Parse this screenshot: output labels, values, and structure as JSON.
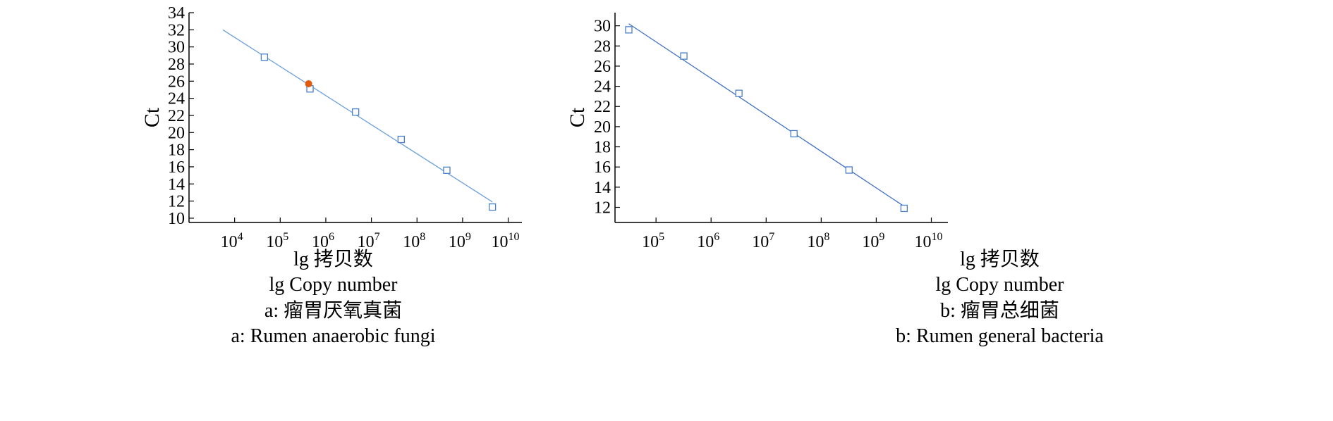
{
  "figure": {
    "panels": [
      {
        "xlabel_cn": "lg 拷贝数",
        "xlabel_en": "lg Copy number",
        "caption_cn": "a: 瘤胃厌氧真菌",
        "caption_en": "a: Rumen anaerobic fungi"
      },
      {
        "xlabel_cn": "lg 拷贝数",
        "xlabel_en": "lg Copy number",
        "caption_cn": "b: 瘤胃总细菌",
        "caption_en": "b: Rumen general bacteria"
      }
    ]
  },
  "chart_data": [
    {
      "type": "scatter",
      "title": "",
      "xlabel": "lg Copy number",
      "ylabel": "Ct",
      "x_scale": "log",
      "xlim": [
        1000,
        20000000000
      ],
      "ylim": [
        9.5,
        34
      ],
      "x_ticks": [
        4,
        5,
        6,
        7,
        8,
        9,
        10
      ],
      "y_ticks": [
        10,
        12,
        14,
        16,
        18,
        20,
        22,
        24,
        26,
        28,
        30,
        32,
        34
      ],
      "grid": false,
      "colors": {
        "points": "#4a7fc8",
        "fit_line": "#6a9fd8",
        "highlight": "#e05a10"
      },
      "series": [
        {
          "marker": "square",
          "x": [
            45000,
            450000,
            4500000,
            45000000,
            450000000,
            4500000000
          ],
          "y": [
            28.8,
            25.1,
            22.4,
            19.2,
            15.6,
            11.3
          ]
        }
      ],
      "fit": {
        "x": [
          5500,
          4500000000
        ],
        "y": [
          32.0,
          11.9
        ]
      },
      "highlight_point": {
        "marker": "circle",
        "x": 420000,
        "y": 25.7
      }
    },
    {
      "type": "scatter",
      "title": "",
      "xlabel": "lg Copy number",
      "ylabel": "Ct",
      "x_scale": "log",
      "xlim": [
        18000,
        20000000000
      ],
      "ylim": [
        10.5,
        31.3
      ],
      "x_ticks": [
        5,
        6,
        7,
        8,
        9,
        10
      ],
      "y_ticks": [
        12,
        14,
        16,
        18,
        20,
        22,
        24,
        26,
        28,
        30
      ],
      "grid": false,
      "colors": {
        "points": "#4a7fc8",
        "fit_line": "#3f6fc0"
      },
      "series": [
        {
          "marker": "square",
          "x": [
            32000,
            320000,
            3200000,
            32000000,
            320000000,
            3200000000
          ],
          "y": [
            29.6,
            27.0,
            23.3,
            19.3,
            15.7,
            11.9
          ]
        }
      ],
      "fit": {
        "x": [
          32000,
          3200000000
        ],
        "y": [
          30.2,
          12.1
        ]
      }
    }
  ]
}
